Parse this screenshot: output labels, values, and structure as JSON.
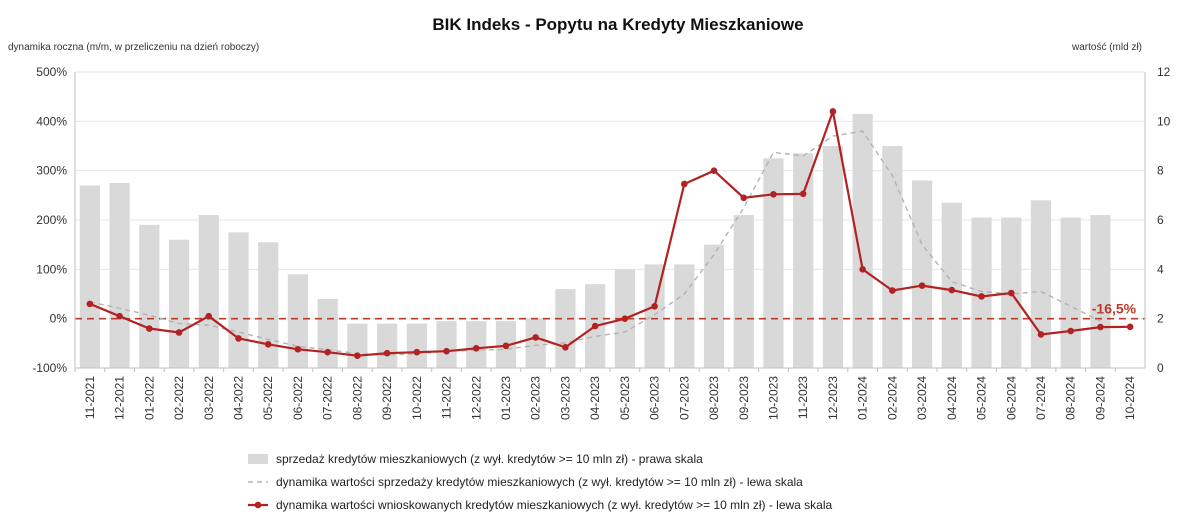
{
  "chart_data": {
    "type": "bar",
    "title": "BIK Indeks - Popytu na Kredyty Mieszkaniowe",
    "ylabel_left": "dynamika roczna (m/m, w przeliczeniu na dzień roboczy)",
    "ylabel_right": "wartość (mld zł)",
    "ylim_left": [
      -100,
      500
    ],
    "ylim_right": [
      0,
      12
    ],
    "left_ticks": [
      "-100%",
      "0%",
      "100%",
      "200%",
      "300%",
      "400%",
      "500%"
    ],
    "right_ticks": [
      "0",
      "2",
      "4",
      "6",
      "8",
      "10",
      "12"
    ],
    "grid": true,
    "categories": [
      "11-2021",
      "12-2021",
      "01-2022",
      "02-2022",
      "03-2022",
      "04-2022",
      "05-2022",
      "06-2022",
      "07-2022",
      "08-2022",
      "09-2022",
      "10-2022",
      "11-2022",
      "12-2022",
      "01-2023",
      "02-2023",
      "03-2023",
      "04-2023",
      "05-2023",
      "06-2023",
      "07-2023",
      "08-2023",
      "09-2023",
      "10-2023",
      "11-2023",
      "12-2023",
      "01-2024",
      "02-2024",
      "03-2024",
      "04-2024",
      "05-2024",
      "06-2024",
      "07-2024",
      "08-2024",
      "09-2024",
      "10-2024"
    ],
    "series": [
      {
        "name": "sprzedaż kredytów mieszkaniowych (z wył. kredytów >= 10 mln zł) - prawa skala",
        "kind": "bar",
        "axis": "right",
        "color": "#d9d9d9",
        "values": [
          7.4,
          7.5,
          5.8,
          5.2,
          6.2,
          5.5,
          5.1,
          3.8,
          2.8,
          1.8,
          1.8,
          1.8,
          1.9,
          1.9,
          1.9,
          2.0,
          3.2,
          3.4,
          4.0,
          4.2,
          4.2,
          5.0,
          6.2,
          8.5,
          8.7,
          9.0,
          10.3,
          9.0,
          7.6,
          6.7,
          6.1,
          6.1,
          6.8,
          6.1,
          6.2,
          0
        ]
      },
      {
        "name": "dynamika wartości sprzedaży kredytów mieszkaniowych (z wył. kredytów >= 10 mln zł) - lewa skala",
        "kind": "dashed-line",
        "axis": "left",
        "color": "#b3b3b3",
        "values": [
          34,
          21,
          7,
          -10,
          -13,
          -27,
          -42,
          -56,
          -63,
          -71,
          -74,
          -71,
          -66,
          -64,
          -62,
          -54,
          -49,
          -36,
          -27,
          8,
          50,
          130,
          225,
          337,
          330,
          370,
          380,
          290,
          150,
          75,
          55,
          50,
          55,
          25,
          -5,
          null
        ]
      },
      {
        "name": "dynamika wartości wnioskowanych kredytów mieszkaniowych (z wył. kredytów >= 10 mln zł) - lewa skala",
        "kind": "line-marker",
        "axis": "left",
        "color": "#b22222",
        "values": [
          30,
          5,
          -20,
          -28,
          5,
          -40,
          -52,
          -62,
          -68,
          -75,
          -70,
          -68,
          -66,
          -60,
          -55,
          -38,
          -58,
          -15,
          0,
          25,
          273,
          300,
          245,
          252,
          253,
          420,
          100,
          57,
          67,
          58,
          45,
          52,
          -32,
          -25,
          -17,
          -16.5
        ]
      }
    ],
    "reference_line": {
      "value": 0,
      "axis": "left",
      "color": "#c0392b",
      "style": "dashed"
    },
    "annotation": {
      "text": "-16,5%",
      "category": "10-2024"
    },
    "legend_placement": "bottom"
  }
}
